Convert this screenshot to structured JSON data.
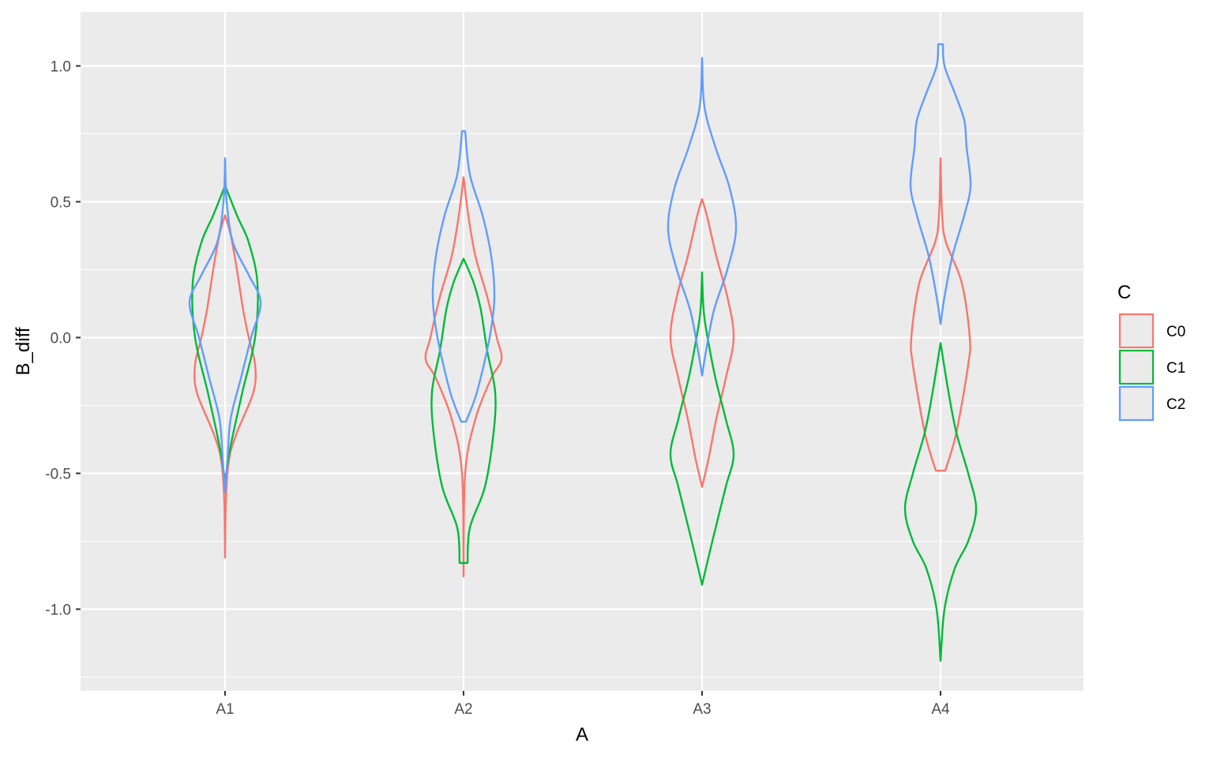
{
  "chart_data": {
    "type": "violin",
    "xlabel": "A",
    "ylabel": "B_diff",
    "categories": [
      "A1",
      "A2",
      "A3",
      "A4"
    ],
    "ylim": [
      -1.25,
      1.2
    ],
    "yticks": [
      -1.0,
      -0.5,
      0.0,
      0.5,
      1.0
    ],
    "ytick_labels": [
      "-1.0",
      "-0.5",
      "0.0",
      "0.5",
      "1.0"
    ],
    "grid": true,
    "legend": {
      "title": "C",
      "placement": "right",
      "entries": [
        "C0",
        "C1",
        "C2"
      ]
    },
    "colors": {
      "C0": "#F8766D",
      "C1": "#00BA38",
      "C2": "#619CFF",
      "panel": "#EBEBEB",
      "grid": "#FFFFFF"
    },
    "series": [
      {
        "name": "C0",
        "color": "#F8766D",
        "violins": [
          {
            "category": "A1",
            "min": -0.81,
            "max": 0.45,
            "profile": [
              [
                -0.81,
                0.0
              ],
              [
                -0.6,
                0.01
              ],
              [
                -0.45,
                0.05
              ],
              [
                -0.35,
                0.15
              ],
              [
                -0.2,
                0.36
              ],
              [
                -0.1,
                0.38
              ],
              [
                0.0,
                0.3
              ],
              [
                0.1,
                0.23
              ],
              [
                0.25,
                0.15
              ],
              [
                0.38,
                0.07
              ],
              [
                0.45,
                0.0
              ]
            ]
          },
          {
            "category": "A2",
            "min": -0.88,
            "max": 0.59,
            "profile": [
              [
                -0.88,
                0.0
              ],
              [
                -0.5,
                0.02
              ],
              [
                -0.3,
                0.15
              ],
              [
                -0.15,
                0.35
              ],
              [
                -0.08,
                0.48
              ],
              [
                0.0,
                0.42
              ],
              [
                0.15,
                0.3
              ],
              [
                0.3,
                0.15
              ],
              [
                0.45,
                0.06
              ],
              [
                0.59,
                0.0
              ]
            ]
          },
          {
            "category": "A3",
            "min": -0.55,
            "max": 0.51,
            "profile": [
              [
                -0.55,
                0.0
              ],
              [
                -0.45,
                0.08
              ],
              [
                -0.3,
                0.18
              ],
              [
                -0.15,
                0.3
              ],
              [
                0.0,
                0.4
              ],
              [
                0.15,
                0.32
              ],
              [
                0.3,
                0.18
              ],
              [
                0.45,
                0.06
              ],
              [
                0.51,
                0.0
              ]
            ]
          },
          {
            "category": "A4",
            "min": -0.49,
            "max": 0.66,
            "profile": [
              [
                -0.49,
                0.06
              ],
              [
                -0.35,
                0.2
              ],
              [
                -0.1,
                0.35
              ],
              [
                0.0,
                0.37
              ],
              [
                0.2,
                0.27
              ],
              [
                0.35,
                0.07
              ],
              [
                0.45,
                0.02
              ],
              [
                0.66,
                0.0
              ]
            ]
          }
        ]
      },
      {
        "name": "C1",
        "color": "#00BA38",
        "violins": [
          {
            "category": "A1",
            "min": -0.53,
            "max": 0.56,
            "profile": [
              [
                -0.53,
                0.0
              ],
              [
                -0.4,
                0.07
              ],
              [
                -0.2,
                0.22
              ],
              [
                0.0,
                0.38
              ],
              [
                0.2,
                0.41
              ],
              [
                0.35,
                0.3
              ],
              [
                0.45,
                0.15
              ],
              [
                0.56,
                0.0
              ]
            ]
          },
          {
            "category": "A2",
            "min": -0.83,
            "max": 0.29,
            "profile": [
              [
                -0.83,
                0.05
              ],
              [
                -0.7,
                0.08
              ],
              [
                -0.55,
                0.27
              ],
              [
                -0.35,
                0.38
              ],
              [
                -0.2,
                0.4
              ],
              [
                -0.05,
                0.3
              ],
              [
                0.1,
                0.22
              ],
              [
                0.2,
                0.13
              ],
              [
                0.29,
                0.0
              ]
            ]
          },
          {
            "category": "A3",
            "min": -0.91,
            "max": 0.24,
            "profile": [
              [
                -0.91,
                0.0
              ],
              [
                -0.75,
                0.13
              ],
              [
                -0.55,
                0.3
              ],
              [
                -0.43,
                0.4
              ],
              [
                -0.3,
                0.3
              ],
              [
                -0.15,
                0.17
              ],
              [
                0.0,
                0.07
              ],
              [
                0.1,
                0.02
              ],
              [
                0.24,
                0.0
              ]
            ]
          },
          {
            "category": "A4",
            "min": -1.19,
            "max": -0.02,
            "profile": [
              [
                -1.19,
                0.0
              ],
              [
                -1.0,
                0.05
              ],
              [
                -0.85,
                0.18
              ],
              [
                -0.75,
                0.35
              ],
              [
                -0.63,
                0.45
              ],
              [
                -0.5,
                0.35
              ],
              [
                -0.35,
                0.2
              ],
              [
                -0.2,
                0.1
              ],
              [
                -0.02,
                0.0
              ]
            ]
          }
        ]
      },
      {
        "name": "C2",
        "color": "#619CFF",
        "violins": [
          {
            "category": "A1",
            "min": -0.57,
            "max": 0.66,
            "profile": [
              [
                -0.57,
                0.0
              ],
              [
                -0.45,
                0.03
              ],
              [
                -0.3,
                0.07
              ],
              [
                -0.15,
                0.2
              ],
              [
                0.0,
                0.33
              ],
              [
                0.13,
                0.45
              ],
              [
                0.23,
                0.3
              ],
              [
                0.35,
                0.1
              ],
              [
                0.5,
                0.02
              ],
              [
                0.66,
                0.0
              ]
            ]
          },
          {
            "category": "A2",
            "min": -0.31,
            "max": 0.76,
            "profile": [
              [
                -0.31,
                0.03
              ],
              [
                -0.2,
                0.17
              ],
              [
                0.0,
                0.33
              ],
              [
                0.15,
                0.39
              ],
              [
                0.3,
                0.35
              ],
              [
                0.45,
                0.24
              ],
              [
                0.6,
                0.08
              ],
              [
                0.76,
                0.02
              ]
            ]
          },
          {
            "category": "A3",
            "min": -0.14,
            "max": 1.03,
            "profile": [
              [
                -0.14,
                0.0
              ],
              [
                -0.05,
                0.05
              ],
              [
                0.1,
                0.15
              ],
              [
                0.25,
                0.32
              ],
              [
                0.4,
                0.43
              ],
              [
                0.55,
                0.35
              ],
              [
                0.7,
                0.17
              ],
              [
                0.85,
                0.03
              ],
              [
                1.03,
                0.0
              ]
            ]
          },
          {
            "category": "A4",
            "min": 0.05,
            "max": 1.08,
            "profile": [
              [
                0.05,
                0.0
              ],
              [
                0.15,
                0.05
              ],
              [
                0.3,
                0.15
              ],
              [
                0.45,
                0.3
              ],
              [
                0.56,
                0.38
              ],
              [
                0.7,
                0.33
              ],
              [
                0.8,
                0.3
              ],
              [
                0.9,
                0.18
              ],
              [
                1.0,
                0.05
              ],
              [
                1.08,
                0.03
              ]
            ]
          }
        ]
      }
    ]
  }
}
